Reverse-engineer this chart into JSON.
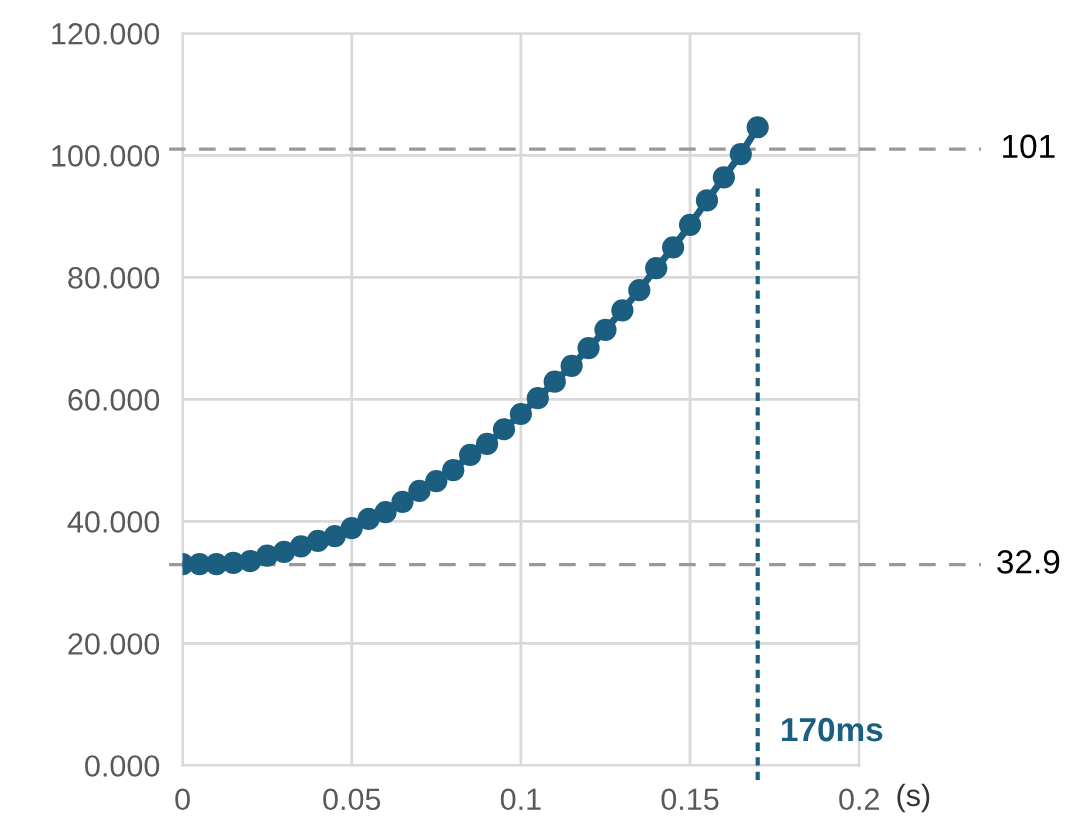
{
  "chart_data": {
    "type": "line",
    "xlabel": "(s)",
    "x": [
      0,
      0.005,
      0.01,
      0.015,
      0.02,
      0.025,
      0.03,
      0.035,
      0.04,
      0.045,
      0.05,
      0.055,
      0.06,
      0.065,
      0.07,
      0.075,
      0.08,
      0.085,
      0.09,
      0.095,
      0.1,
      0.105,
      0.11,
      0.115,
      0.12,
      0.125,
      0.13,
      0.135,
      0.14,
      0.145,
      0.15,
      0.155,
      0.16,
      0.165,
      0.17
    ],
    "series": [
      {
        "color": "#1b5e80",
        "values": [
          33.0,
          33.0,
          33.0,
          33.2,
          33.5,
          34.4,
          35.0,
          35.9,
          36.8,
          37.6,
          38.9,
          40.4,
          41.5,
          43.2,
          45.0,
          46.6,
          48.4,
          50.9,
          52.7,
          55.1,
          57.6,
          60.2,
          62.9,
          65.5,
          68.4,
          71.4,
          74.6,
          77.9,
          81.5,
          84.9,
          88.6,
          92.6,
          96.4,
          100.2,
          104.6
        ]
      }
    ],
    "marker": "circle",
    "line_style": "solid",
    "grid": true,
    "legend": false,
    "xlim": [
      0,
      0.2
    ],
    "xticks": [
      0,
      0.05,
      0.1,
      0.15,
      0.2
    ],
    "ylim": [
      0,
      120
    ],
    "yticks": [
      {
        "value": 0,
        "label": "0.000"
      },
      {
        "value": 20,
        "label": "20.000"
      },
      {
        "value": 40,
        "label": "40.000"
      },
      {
        "value": 60,
        "label": "60.000"
      },
      {
        "value": 80,
        "label": "80.000"
      },
      {
        "value": 100,
        "label": "100.000"
      },
      {
        "value": 120,
        "label": "120.000"
      }
    ],
    "ref_lines": [
      {
        "axis": "y",
        "value": 101,
        "label": "101",
        "color": "#999999",
        "line_style": "dashed"
      },
      {
        "axis": "y",
        "value": 32.9,
        "label": "32.9",
        "color": "#999999",
        "line_style": "dashed"
      },
      {
        "axis": "x",
        "value": 0.17,
        "label": "170ms",
        "color": "#1b5e80",
        "line_style": "dotted"
      }
    ]
  }
}
